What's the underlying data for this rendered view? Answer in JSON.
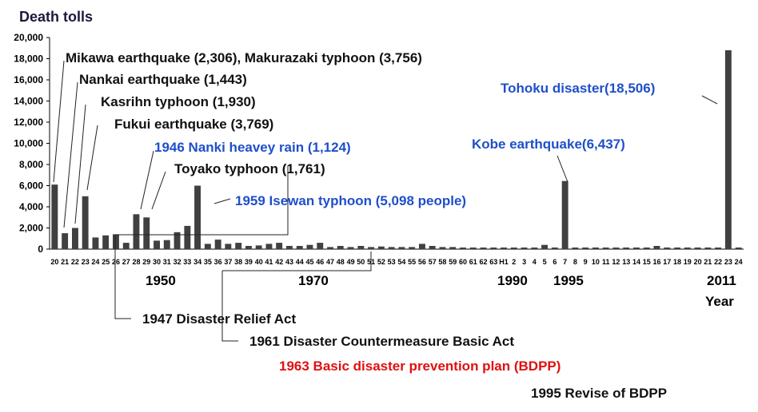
{
  "chart_data": {
    "type": "bar",
    "title": "Death tolls",
    "xlabel": "Year",
    "ylim": [
      0,
      20000
    ],
    "yticks": [
      "0",
      "2,000",
      "4,000",
      "6,000",
      "8,000",
      "10,000",
      "12,000",
      "14,000",
      "16,000",
      "18,000",
      "20,000"
    ],
    "grid": false,
    "legend": "none",
    "bar_color": "#404040",
    "categories": [
      "20",
      "21",
      "22",
      "23",
      "24",
      "25",
      "26",
      "27",
      "28",
      "29",
      "30",
      "31",
      "32",
      "33",
      "34",
      "35",
      "36",
      "37",
      "38",
      "39",
      "40",
      "41",
      "42",
      "43",
      "44",
      "45",
      "46",
      "47",
      "48",
      "49",
      "50",
      "51",
      "52",
      "53",
      "54",
      "55",
      "56",
      "57",
      "58",
      "59",
      "60",
      "61",
      "62",
      "63",
      "H1",
      "2",
      "3",
      "4",
      "5",
      "6",
      "7",
      "8",
      "9",
      "10",
      "11",
      "12",
      "13",
      "14",
      "15",
      "16",
      "17",
      "18",
      "19",
      "20",
      "21",
      "22",
      "23",
      "24"
    ],
    "values": [
      6100,
      1500,
      2000,
      5000,
      1100,
      1300,
      1400,
      600,
      3300,
      3000,
      800,
      850,
      1600,
      2200,
      6000,
      500,
      900,
      500,
      600,
      300,
      350,
      500,
      600,
      300,
      300,
      400,
      600,
      200,
      300,
      200,
      300,
      200,
      250,
      200,
      200,
      200,
      500,
      300,
      200,
      200,
      150,
      150,
      150,
      150,
      150,
      150,
      150,
      150,
      400,
      150,
      6437,
      150,
      150,
      150,
      150,
      150,
      150,
      150,
      150,
      300,
      150,
      150,
      150,
      150,
      150,
      150,
      18800,
      150
    ],
    "decade_labels": [
      "1950",
      "1970",
      "1990",
      "1995",
      "2011"
    ],
    "annotations": {
      "mikawa": "Mikawa earthquake (2,306), Makurazaki typhoon (3,756)",
      "nankai": "Nankai earthquake (1,443)",
      "kasrihn": "Kasrihn typhoon (1,930)",
      "fukui": "Fukui earthquake (3,769)",
      "nanki": "1946 Nanki heavey rain (1,124)",
      "toyako": "Toyako typhoon (1,761)",
      "isewan": "1959 Isewan typhoon (5,098 people)",
      "kobe": "Kobe earthquake(6,437)",
      "tohoku": "Tohoku disaster(18,506)"
    },
    "legislation": {
      "relief_act": "1947 Disaster Relief Act",
      "basic_act": "1961 Disaster Countermeasure Basic Act",
      "bdpp": "1963 Basic disaster prevention plan (BDPP)",
      "revise": "1995 Revise of BDPP"
    },
    "colors": {
      "annotation_black": "#111111",
      "annotation_blue": "#1f4fc9",
      "annotation_red": "#e01010"
    }
  }
}
